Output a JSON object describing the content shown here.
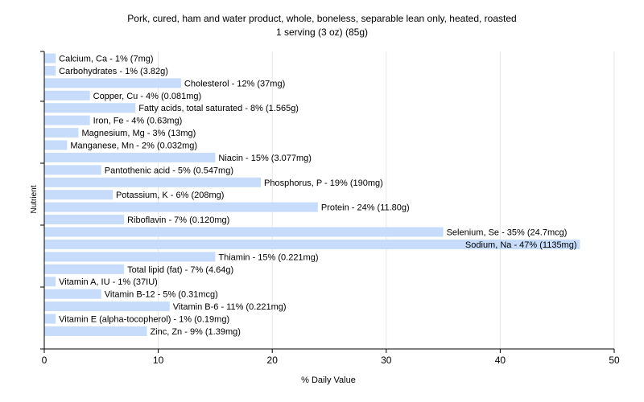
{
  "chart_data": {
    "type": "bar",
    "orientation": "horizontal",
    "title": "Pork, cured, ham and water product, whole, boneless, separable lean only, heated, roasted",
    "subtitle": "1 serving (3 oz) (85g)",
    "xlabel": "% Daily Value",
    "ylabel": "Nutrient",
    "xlim": [
      0,
      50
    ],
    "xticks": [
      0,
      10,
      20,
      30,
      40,
      50
    ],
    "grid": true,
    "bar_color": "#c6dcfa",
    "categories": [
      "Calcium, Ca",
      "Carbohydrates",
      "Cholesterol",
      "Copper, Cu",
      "Fatty acids, total saturated",
      "Iron, Fe",
      "Magnesium, Mg",
      "Manganese, Mn",
      "Niacin",
      "Pantothenic acid",
      "Phosphorus, P",
      "Potassium, K",
      "Protein",
      "Riboflavin",
      "Selenium, Se",
      "Sodium, Na",
      "Thiamin",
      "Total lipid (fat)",
      "Vitamin A, IU",
      "Vitamin B-12",
      "Vitamin B-6",
      "Vitamin E (alpha-tocopherol)",
      "Zinc, Zn"
    ],
    "values": [
      1,
      1,
      12,
      4,
      8,
      4,
      3,
      2,
      15,
      5,
      19,
      6,
      24,
      7,
      35,
      47,
      15,
      7,
      1,
      5,
      11,
      1,
      9
    ],
    "labels": [
      "Calcium, Ca - 1% (7mg)",
      "Carbohydrates - 1% (3.82g)",
      "Cholesterol - 12% (37mg)",
      "Copper, Cu - 4% (0.081mg)",
      "Fatty acids, total saturated - 8% (1.565g)",
      "Iron, Fe - 4% (0.63mg)",
      "Magnesium, Mg - 3% (13mg)",
      "Manganese, Mn - 2% (0.032mg)",
      "Niacin - 15% (3.077mg)",
      "Pantothenic acid - 5% (0.547mg)",
      "Phosphorus, P - 19% (190mg)",
      "Potassium, K - 6% (208mg)",
      "Protein - 24% (11.80g)",
      "Riboflavin - 7% (0.120mg)",
      "Selenium, Se - 35% (24.7mcg)",
      "Sodium, Na - 47% (1135mg)",
      "Thiamin - 15% (0.221mg)",
      "Total lipid (fat) - 7% (4.64g)",
      "Vitamin A, IU - 1% (37IU)",
      "Vitamin B-12 - 5% (0.31mcg)",
      "Vitamin B-6 - 11% (0.221mg)",
      "Vitamin E (alpha-tocopherol) - 1% (0.19mg)",
      "Zinc, Zn - 9% (1.39mg)"
    ]
  }
}
